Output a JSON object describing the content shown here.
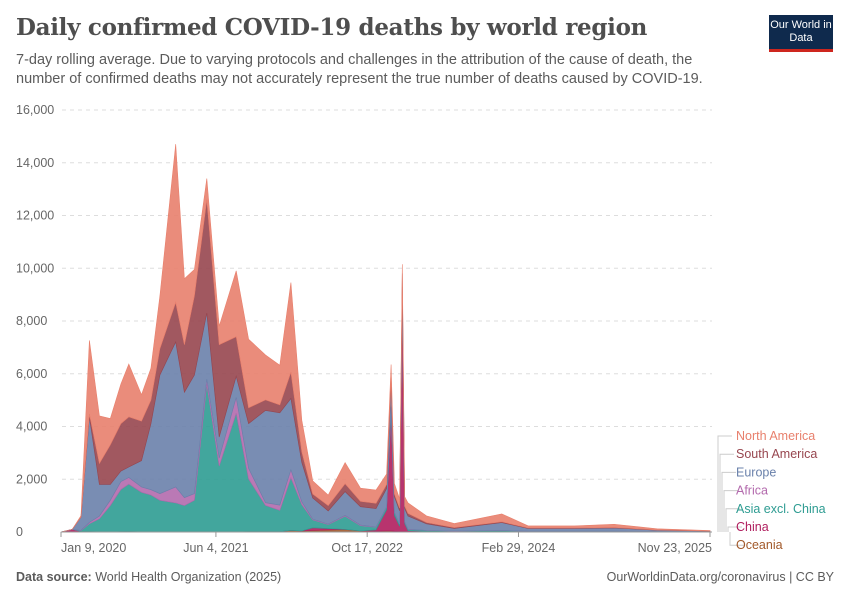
{
  "header": {
    "title": "Daily confirmed COVID-19 deaths by world region",
    "subtitle": "7-day rolling average. Due to varying protocols and challenges in the attribution of the cause of death, the number of confirmed deaths may not accurately represent the true number of deaths caused by COVID-19.",
    "logo": "Our World in Data"
  },
  "footer": {
    "source_label": "Data source:",
    "source": "World Health Organization (2025)",
    "link": "OurWorldinData.org/coronavirus | CC BY"
  },
  "chart_data": {
    "type": "area",
    "stacked": true,
    "title": "Daily confirmed COVID-19 deaths by world region",
    "ylim": [
      0,
      16000
    ],
    "yticks": [
      "0",
      "2,000",
      "4,000",
      "6,000",
      "8,000",
      "10,000",
      "12,000",
      "14,000",
      "16,000"
    ],
    "ytick_values": [
      0,
      2000,
      4000,
      6000,
      8000,
      10000,
      12000,
      14000,
      16000
    ],
    "xticks": [
      {
        "date": "2020-01-09",
        "label": "Jan 9, 2020"
      },
      {
        "date": "2021-06-04",
        "label": "Jun 4, 2021"
      },
      {
        "date": "2022-10-17",
        "label": "Oct 17, 2022"
      },
      {
        "date": "2024-02-29",
        "label": "Feb 29, 2024"
      },
      {
        "date": "2025-11-23",
        "label": "Nov 23, 2025"
      }
    ],
    "grid": true,
    "legend_placement": "right",
    "x": [
      "2020-01-09",
      "2020-02-15",
      "2020-03-15",
      "2020-04-12",
      "2020-05-15",
      "2020-06-20",
      "2020-07-25",
      "2020-08-20",
      "2020-10-01",
      "2020-11-01",
      "2020-12-01",
      "2021-01-22",
      "2021-02-20",
      "2021-03-25",
      "2021-05-05",
      "2021-06-15",
      "2021-08-10",
      "2021-09-20",
      "2021-11-15",
      "2022-01-01",
      "2022-02-07",
      "2022-03-15",
      "2022-04-20",
      "2022-06-10",
      "2022-08-05",
      "2022-09-25",
      "2022-11-15",
      "2022-12-20",
      "2023-01-04",
      "2023-01-15",
      "2023-02-01",
      "2023-02-10",
      "2023-02-18",
      "2023-03-01",
      "2023-05-01",
      "2023-08-01",
      "2024-01-05",
      "2024-04-01",
      "2024-09-01",
      "2025-01-10",
      "2025-06-01",
      "2025-11-23"
    ],
    "series": [
      {
        "name": "Oceania",
        "color": "#a2592a",
        "values": [
          0,
          0,
          0,
          5,
          2,
          1,
          10,
          15,
          5,
          2,
          2,
          5,
          2,
          2,
          2,
          2,
          5,
          10,
          10,
          20,
          60,
          40,
          60,
          80,
          100,
          40,
          30,
          40,
          40,
          30,
          20,
          20,
          20,
          20,
          15,
          10,
          10,
          5,
          5,
          5,
          3,
          2
        ]
      },
      {
        "name": "China",
        "color": "#b01e5e",
        "values": [
          0,
          100,
          20,
          10,
          0,
          0,
          0,
          0,
          0,
          0,
          0,
          0,
          0,
          0,
          0,
          0,
          0,
          0,
          0,
          0,
          0,
          0,
          100,
          50,
          0,
          0,
          50,
          800,
          4500,
          600,
          200,
          8700,
          300,
          30,
          10,
          5,
          5,
          5,
          5,
          5,
          5,
          5
        ]
      },
      {
        "name": "Asia excl. China",
        "color": "#2e9c92",
        "values": [
          0,
          0,
          30,
          300,
          500,
          1000,
          1600,
          1800,
          1500,
          1400,
          1200,
          1100,
          1000,
          1200,
          5600,
          2500,
          4500,
          2000,
          1000,
          800,
          2000,
          1000,
          300,
          150,
          500,
          200,
          100,
          100,
          200,
          100,
          80,
          80,
          60,
          50,
          30,
          20,
          40,
          20,
          20,
          20,
          10,
          5
        ]
      },
      {
        "name": "Africa",
        "color": "#b36aad",
        "values": [
          0,
          0,
          10,
          50,
          100,
          200,
          300,
          250,
          200,
          200,
          250,
          600,
          300,
          250,
          200,
          300,
          600,
          400,
          100,
          200,
          300,
          100,
          30,
          20,
          30,
          20,
          10,
          10,
          10,
          10,
          5,
          5,
          5,
          5,
          5,
          2,
          2,
          2,
          2,
          2,
          2,
          1
        ]
      },
      {
        "name": "Europe",
        "color": "#6a81ab",
        "values": [
          0,
          0,
          500,
          4000,
          1200,
          600,
          400,
          400,
          1000,
          2500,
          4500,
          5500,
          4000,
          4500,
          2500,
          800,
          800,
          1700,
          3500,
          3500,
          2700,
          1500,
          800,
          500,
          900,
          700,
          700,
          700,
          900,
          600,
          500,
          500,
          500,
          500,
          250,
          100,
          300,
          100,
          100,
          120,
          50,
          20
        ]
      },
      {
        "name": "South America",
        "color": "#97464f",
        "values": [
          0,
          0,
          10,
          100,
          800,
          1500,
          1800,
          1900,
          1500,
          900,
          1000,
          1500,
          1800,
          3000,
          4300,
          3500,
          1500,
          600,
          400,
          300,
          1000,
          400,
          150,
          200,
          300,
          200,
          200,
          150,
          200,
          100,
          100,
          500,
          100,
          100,
          50,
          30,
          30,
          20,
          20,
          20,
          10,
          5
        ]
      },
      {
        "name": "North America",
        "color": "#e8806d",
        "values": [
          0,
          0,
          50,
          2800,
          1800,
          1000,
          1500,
          2000,
          1000,
          1200,
          2000,
          6000,
          2500,
          1000,
          800,
          700,
          2500,
          2600,
          1700,
          1500,
          3400,
          1200,
          500,
          400,
          800,
          500,
          500,
          400,
          500,
          400,
          350,
          350,
          350,
          400,
          250,
          150,
          300,
          80,
          80,
          120,
          40,
          20
        ]
      }
    ]
  }
}
